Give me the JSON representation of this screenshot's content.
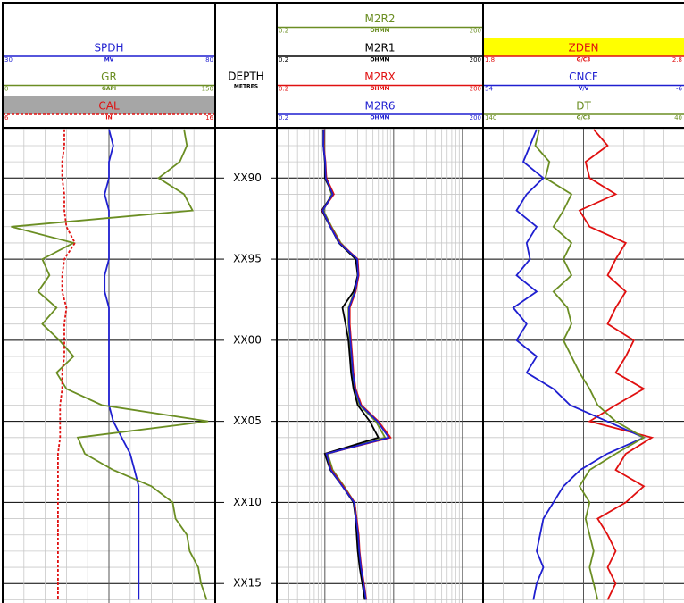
{
  "chart_data": {
    "type": "well_log",
    "depth_header": "DEPTH",
    "depth_unit": "METRES",
    "depth": [
      87,
      88,
      89,
      90,
      91,
      92,
      93,
      94,
      95,
      96,
      97,
      98,
      99,
      100,
      101,
      102,
      103,
      104,
      105,
      106,
      107,
      108,
      109,
      110,
      111,
      112,
      113,
      114,
      115,
      116
    ],
    "depth_ticks": [
      {
        "value": 90,
        "label": "XX90"
      },
      {
        "value": 95,
        "label": "XX95"
      },
      {
        "value": 100,
        "label": "XX00"
      },
      {
        "value": 105,
        "label": "XX05"
      },
      {
        "value": 110,
        "label": "XX10"
      },
      {
        "value": 115,
        "label": "XX15"
      }
    ],
    "ylim": [
      86.9,
      116.2
    ],
    "grid": true,
    "tracks": [
      {
        "scale": "linear",
        "curves": [
          {
            "name": "SPDH",
            "unit": "MV",
            "lim": [
              30,
              80
            ],
            "color": "#1f1fd0",
            "values": [
              55,
              56,
              55,
              55,
              54,
              55,
              55,
              55,
              55,
              54,
              54,
              55,
              55,
              55,
              55,
              55,
              55,
              55,
              56,
              58,
              60,
              61,
              62,
              62,
              62,
              62,
              62,
              62,
              62,
              62
            ]
          },
          {
            "name": "GR",
            "unit": "GAPI",
            "lim": [
              0,
              150
            ],
            "color": "#6b8e23",
            "values": [
              128,
              130,
              125,
              110,
              128,
              134,
              6,
              50,
              28,
              33,
              25,
              38,
              28,
              40,
              50,
              38,
              45,
              70,
              145,
              53,
              58,
              78,
              105,
              120,
              122,
              130,
              132,
              138,
              140,
              144
            ]
          },
          {
            "name": "CAL",
            "unit": "IN",
            "lim": [
              6,
              16
            ],
            "color": "#e01010",
            "dashed": true,
            "header_fill": "#a6a6a6",
            "values": [
              8.9,
              8.9,
              8.8,
              8.8,
              8.9,
              8.9,
              9.0,
              9.4,
              8.9,
              8.8,
              8.8,
              9.0,
              8.9,
              8.9,
              8.9,
              8.8,
              8.8,
              8.7,
              8.7,
              8.7,
              8.6,
              8.6,
              8.6,
              8.6,
              8.6,
              8.6,
              8.6,
              8.6,
              8.6,
              8.6
            ]
          }
        ]
      },
      {
        "scale": "log",
        "curves": [
          {
            "name": "M2R2",
            "unit": "OHMM",
            "lim": [
              0.2,
              200
            ],
            "color": "#6b8e23",
            "values": [
              0.95,
              0.97,
              1.0,
              1.05,
              1.25,
              0.95,
              1.25,
              1.7,
              2.9,
              3.0,
              2.7,
              2.2,
              2.2,
              2.3,
              2.4,
              2.5,
              2.7,
              3.2,
              5.5,
              7.5,
              1.1,
              1.3,
              1.9,
              2.7,
              2.9,
              3.0,
              3.1,
              3.3,
              3.6,
              3.9
            ]
          },
          {
            "name": "M2R1",
            "unit": "OHMM",
            "lim": [
              0.2,
              200
            ],
            "color": "#000000",
            "values": [
              0.95,
              0.95,
              1.0,
              1.0,
              1.3,
              0.9,
              1.2,
              1.6,
              2.8,
              3.0,
              2.6,
              1.8,
              2.0,
              2.2,
              2.3,
              2.4,
              2.6,
              3.0,
              4.5,
              6.0,
              1.0,
              1.2,
              1.8,
              2.6,
              2.8,
              2.9,
              3.0,
              3.2,
              3.5,
              3.8
            ]
          },
          {
            "name": "M2RX",
            "unit": "OHMM",
            "lim": [
              0.2,
              200
            ],
            "color": "#e01010",
            "values": [
              0.97,
              0.96,
              1.02,
              1.05,
              1.35,
              0.92,
              1.22,
              1.65,
              3.0,
              3.1,
              2.8,
              2.3,
              2.3,
              2.4,
              2.5,
              2.6,
              2.8,
              3.4,
              6.0,
              9.0,
              1.05,
              1.25,
              1.85,
              2.7,
              2.9,
              3.1,
              3.2,
              3.4,
              3.7,
              4.0
            ]
          },
          {
            "name": "M2R6",
            "unit": "OHMM",
            "lim": [
              0.2,
              200
            ],
            "color": "#1f1fd0",
            "values": [
              0.96,
              0.95,
              1.01,
              1.03,
              1.3,
              0.93,
              1.2,
              1.62,
              2.95,
              3.05,
              2.75,
              2.25,
              2.25,
              2.35,
              2.45,
              2.55,
              2.75,
              3.3,
              5.8,
              8.5,
              1.05,
              1.22,
              1.8,
              2.65,
              2.85,
              3.05,
              3.15,
              3.35,
              3.65,
              3.95
            ]
          }
        ]
      },
      {
        "scale": "linear",
        "curves": [
          {
            "name": "ZDEN",
            "unit": "G/C3",
            "lim": [
              1.8,
              2.8
            ],
            "color": "#e01010",
            "header_fill": "#ffff00",
            "values": [
              2.35,
              2.42,
              2.31,
              2.33,
              2.46,
              2.28,
              2.33,
              2.51,
              2.46,
              2.42,
              2.51,
              2.46,
              2.42,
              2.55,
              2.51,
              2.46,
              2.6,
              2.46,
              2.33,
              2.64,
              2.51,
              2.46,
              2.6,
              2.51,
              2.37,
              2.42,
              2.46,
              2.42,
              2.46,
              2.42
            ]
          },
          {
            "name": "CNCF",
            "unit": "V/V",
            "lim": [
              54,
              -6
            ],
            "color": "#1f1fd0",
            "values": [
              38,
              40,
              42,
              36,
              41,
              44,
              38,
              41,
              40,
              44,
              38,
              45,
              41,
              44,
              38,
              41,
              33,
              28,
              17,
              6,
              17,
              25,
              30,
              33,
              36,
              37,
              38,
              36,
              38,
              39
            ]
          },
          {
            "name": "DT",
            "unit": "G/C3",
            "lim": [
              140,
              40
            ],
            "color": "#6b8e23",
            "values": [
              112,
              114,
              107,
              109,
              96,
              100,
              105,
              96,
              100,
              96,
              105,
              98,
              96,
              100,
              96,
              92,
              87,
              83,
              74,
              60,
              74,
              87,
              92,
              87,
              89,
              87,
              85,
              87,
              85,
              83
            ]
          }
        ]
      }
    ]
  }
}
